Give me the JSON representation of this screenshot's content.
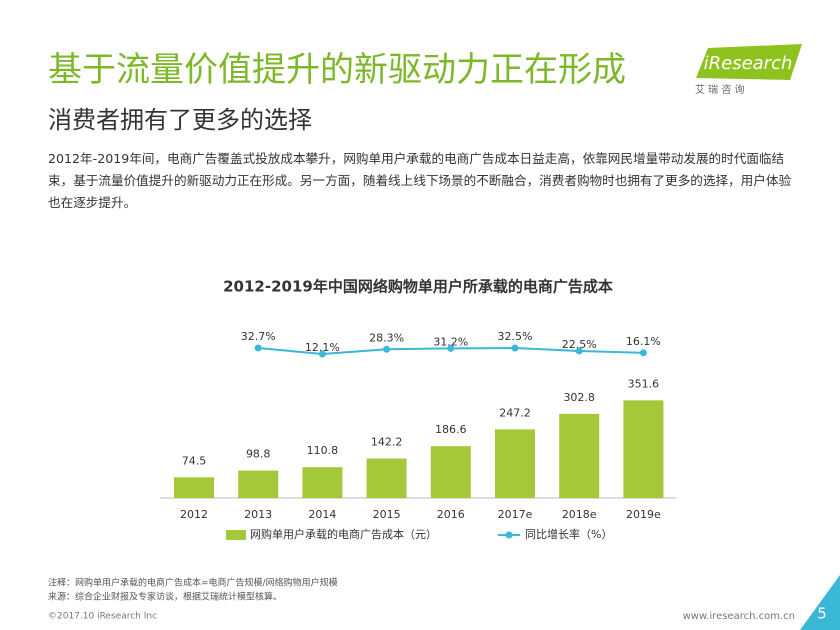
{
  "header": {
    "title": "基于流量价值提升的新驱动力正在形成",
    "subtitle": "消费者拥有了更多的选择",
    "body": "2012年-2019年间，电商广告覆盖式投放成本攀升，网购单用户承载的电商广告成本日益走高，依靠网民增量带动发展的时代面临结束，基于流量价值提升的新驱动力正在形成。另一方面，随着线上线下场景的不断融合，消费者购物时也拥有了更多的选择，用户体验也在逐步提升。"
  },
  "logo": {
    "name": "iResearch",
    "sub": "艾 瑞 咨 询"
  },
  "chart_data": {
    "type": "bar_line",
    "title": "2012-2019年中国网络购物单用户所承载的电商广告成本",
    "categories": [
      "2012",
      "2013",
      "2014",
      "2015",
      "2016",
      "2017e",
      "2018e",
      "2019e"
    ],
    "series": [
      {
        "name": "网购单用户承载的电商广告成本（元）",
        "color": "#a3c93a",
        "values": [
          74.5,
          98.8,
          110.8,
          142.2,
          186.6,
          247.2,
          302.8,
          351.6
        ]
      },
      {
        "name": "同比增长率（%）",
        "color": "#3bb7d8",
        "axis": "y2",
        "values": [
          null,
          32.7,
          12.1,
          28.3,
          31.2,
          32.5,
          22.5,
          16.1
        ],
        "value_labels": [
          null,
          "32.7%",
          "12.1%",
          "28.3%",
          "31.2%",
          "32.5%",
          "22.5%",
          "16.1%"
        ]
      }
    ],
    "ylim": [
      0,
      360
    ],
    "y2lim": [
      0,
      100
    ]
  },
  "notes": [
    "注释：网购单用户承载的电商广告成本=电商广告规模/网络购物用户规模",
    "来源：综合企业财报及专家访谈，根据艾瑞统计模型核算。"
  ],
  "footer": {
    "copyright": "©2017.10 iResearch Inc",
    "url": "www.iresearch.com.cn",
    "page": "5"
  }
}
